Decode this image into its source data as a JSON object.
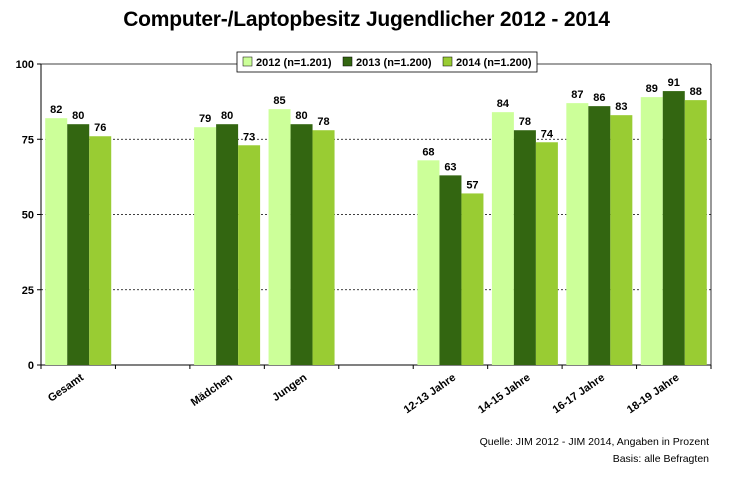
{
  "title": "Computer-/Laptopbesitz Jugendlicher 2012 - 2014",
  "source": "Quelle: JIM 2012 - JIM 2014, Angaben in Prozent",
  "basis": "Basis: alle Befragten",
  "colors": {
    "s2012": "#ccff99",
    "s2013": "#336611",
    "s2014": "#99cc33"
  },
  "chart_data": {
    "type": "bar",
    "title": "Computer-/Laptopbesitz Jugendlicher 2012 - 2014",
    "xlabel": "",
    "ylabel": "",
    "ylim": [
      0,
      100
    ],
    "yticks": [
      0,
      25,
      50,
      75,
      100
    ],
    "grid": true,
    "legend_position": "top-right",
    "categories": [
      "Gesamt",
      "",
      "Mädchen",
      "Jungen",
      "",
      "12-13 Jahre",
      "14-15 Jahre",
      "16-17 Jahre",
      "18-19 Jahre"
    ],
    "series": [
      {
        "name": "2012 (n=1.201)",
        "color": "#ccff99",
        "values": [
          82,
          null,
          79,
          85,
          null,
          68,
          84,
          87,
          89
        ]
      },
      {
        "name": "2013 (n=1.200)",
        "color": "#336611",
        "values": [
          80,
          null,
          80,
          80,
          null,
          63,
          78,
          86,
          91
        ]
      },
      {
        "name": "2014 (n=1.200)",
        "color": "#99cc33",
        "values": [
          76,
          null,
          73,
          78,
          null,
          57,
          74,
          83,
          88
        ]
      }
    ]
  }
}
